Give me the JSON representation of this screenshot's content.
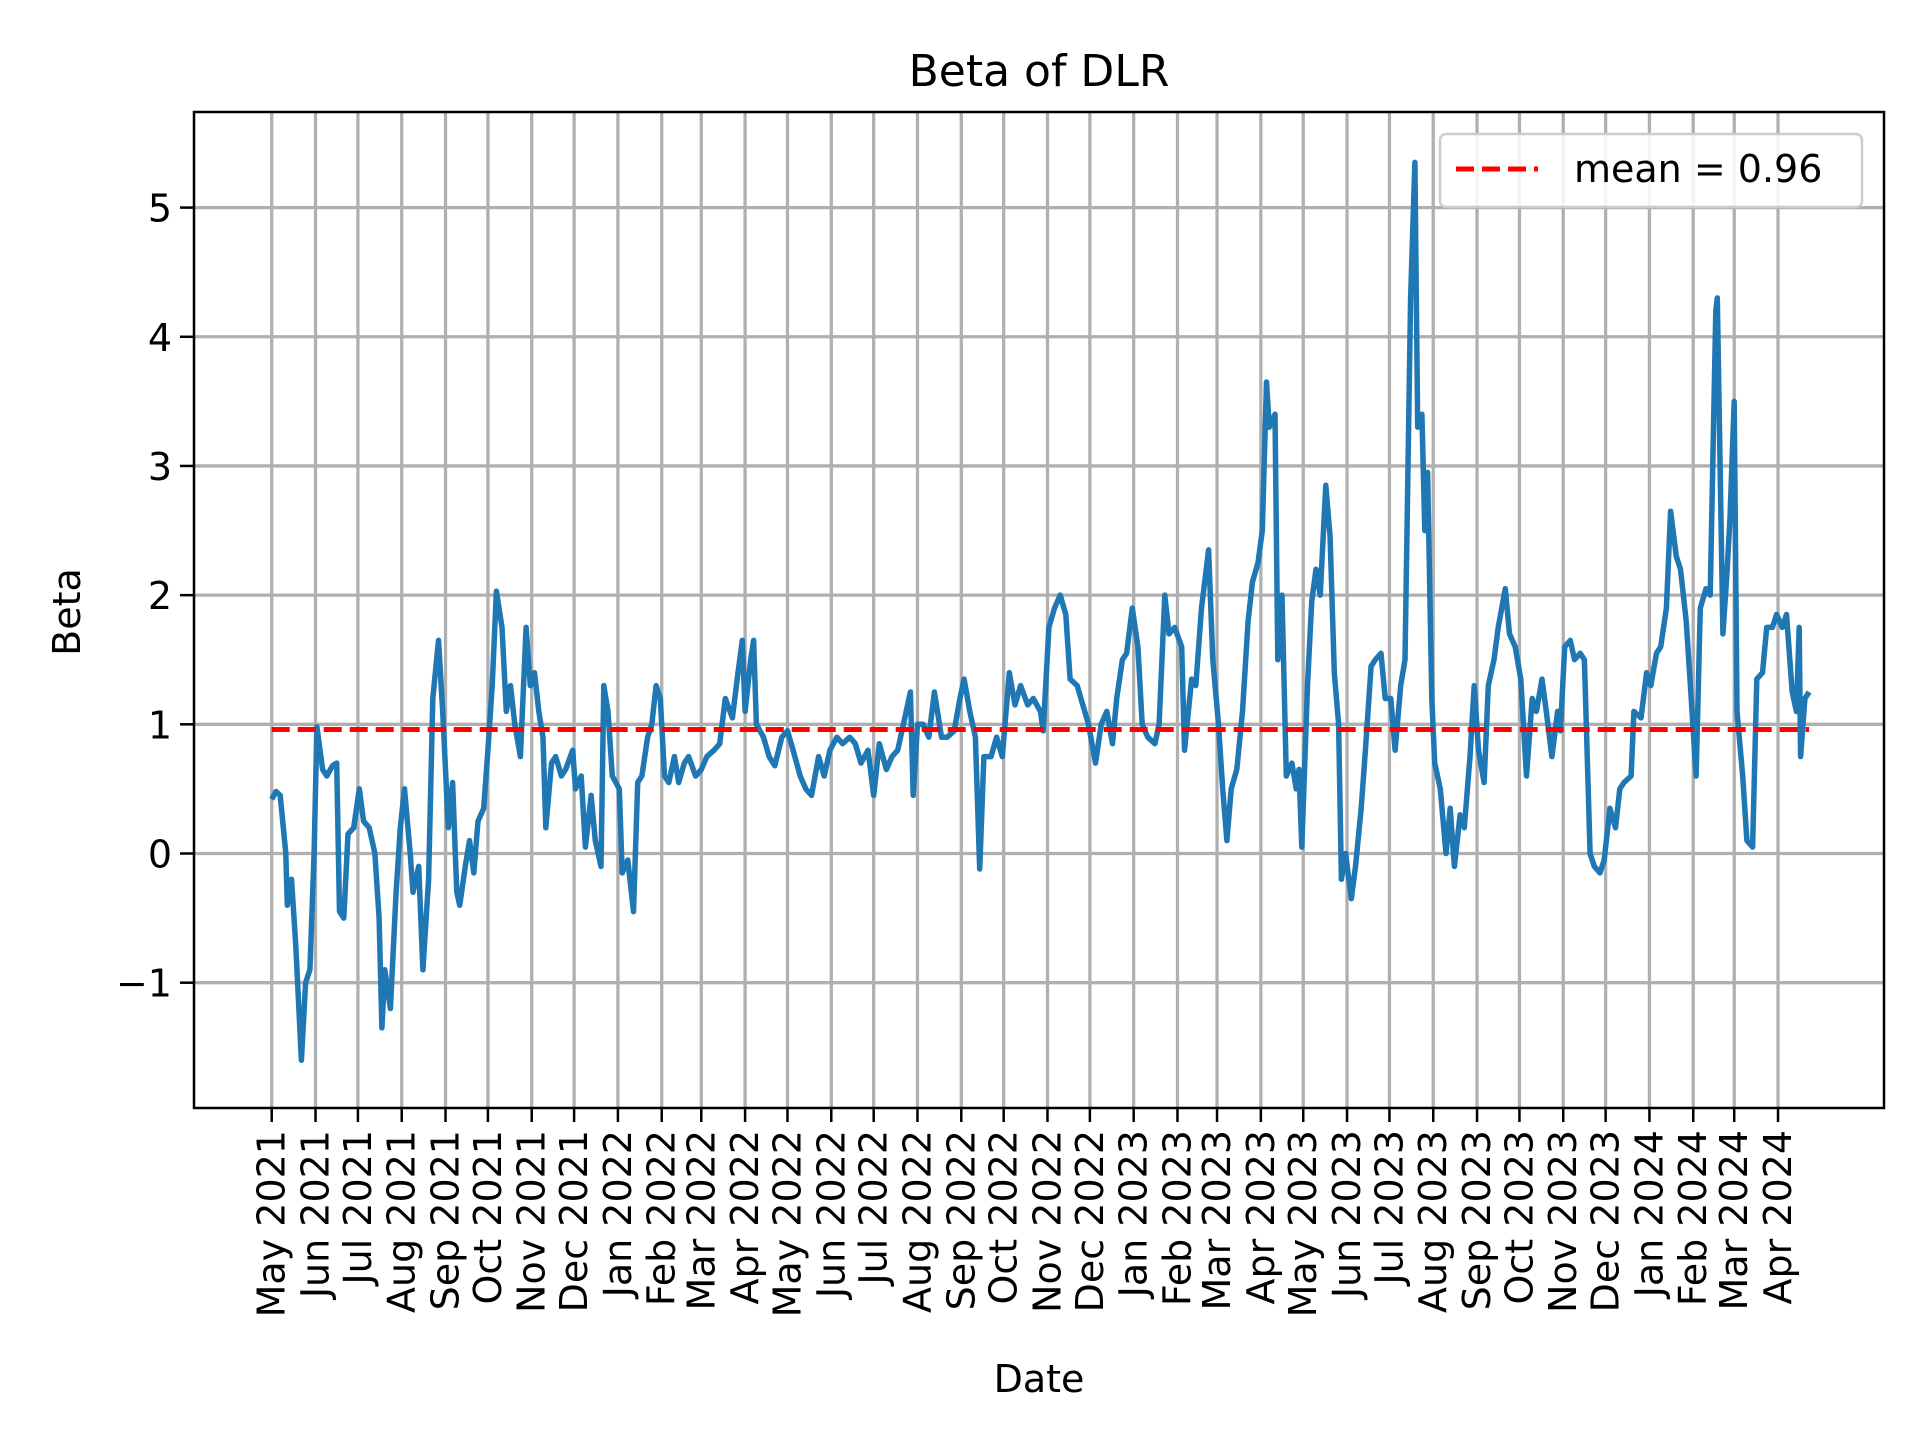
{
  "chart_data": {
    "type": "line",
    "title": "Beta of DLR",
    "xlabel": "Date",
    "ylabel": "Beta",
    "xlim": [
      "2021-03-07",
      "2024-06-15"
    ],
    "ylim": [
      -1.97,
      5.74
    ],
    "grid": true,
    "legend_placement": "top-right",
    "yticks": [
      -1,
      0,
      1,
      2,
      3,
      4,
      5
    ],
    "ytick_labels": [
      "−1",
      "0",
      "1",
      "2",
      "3",
      "4",
      "5"
    ],
    "xtick_labels": [
      "May 2021",
      "Jun 2021",
      "Jul 2021",
      "Aug 2021",
      "Sep 2021",
      "Oct 2021",
      "Nov 2021",
      "Dec 2021",
      "Jan 2022",
      "Feb 2022",
      "Mar 2022",
      "Apr 2022",
      "May 2022",
      "Jun 2022",
      "Jul 2022",
      "Aug 2022",
      "Sep 2022",
      "Oct 2022",
      "Nov 2022",
      "Dec 2022",
      "Jan 2023",
      "Feb 2023",
      "Mar 2023",
      "Apr 2023",
      "May 2023",
      "Jun 2023",
      "Jul 2023",
      "Aug 2023",
      "Sep 2023",
      "Oct 2023",
      "Nov 2023",
      "Dec 2023",
      "Jan 2024",
      "Feb 2024",
      "Mar 2024",
      "Apr 2024"
    ],
    "mean_line": {
      "value": 0.96,
      "label": "mean = 0.96",
      "color": "#ff0000",
      "style": "dashed"
    },
    "series": [
      {
        "color": "#1f77b4",
        "x": [
          "2021-05-01",
          "2021-05-04",
          "2021-05-07",
          "2021-05-11",
          "2021-05-12",
          "2021-05-15",
          "2021-05-18",
          "2021-05-22",
          "2021-05-25",
          "2021-05-28",
          "2021-05-31",
          "2021-06-02",
          "2021-06-06",
          "2021-06-09",
          "2021-06-13",
          "2021-06-16",
          "2021-06-18",
          "2021-06-21",
          "2021-06-24",
          "2021-06-28",
          "2021-07-02",
          "2021-07-05",
          "2021-07-09",
          "2021-07-13",
          "2021-07-16",
          "2021-07-18",
          "2021-07-20",
          "2021-07-24",
          "2021-07-28",
          "2021-07-31",
          "2021-08-03",
          "2021-08-07",
          "2021-08-09",
          "2021-08-13",
          "2021-08-16",
          "2021-08-20",
          "2021-08-23",
          "2021-08-27",
          "2021-08-30",
          "2021-09-03",
          "2021-09-06",
          "2021-09-09",
          "2021-09-11",
          "2021-09-15",
          "2021-09-18",
          "2021-09-21",
          "2021-09-24",
          "2021-09-28",
          "2021-10-01",
          "2021-10-04",
          "2021-10-07",
          "2021-10-11",
          "2021-10-14",
          "2021-10-17",
          "2021-10-20",
          "2021-10-24",
          "2021-10-28",
          "2021-10-31",
          "2021-11-03",
          "2021-11-06",
          "2021-11-09",
          "2021-11-11",
          "2021-11-15",
          "2021-11-18",
          "2021-11-22",
          "2021-11-25",
          "2021-11-30",
          "2021-12-02",
          "2021-12-06",
          "2021-12-09",
          "2021-12-13",
          "2021-12-16",
          "2021-12-20",
          "2021-12-22",
          "2021-12-25",
          "2021-12-28",
          "2022-01-02",
          "2022-01-04",
          "2022-01-08",
          "2022-01-12",
          "2022-01-15",
          "2022-01-18",
          "2022-01-22",
          "2022-01-25",
          "2022-01-28",
          "2022-01-31",
          "2022-02-03",
          "2022-02-06",
          "2022-02-10",
          "2022-02-13",
          "2022-02-17",
          "2022-02-20",
          "2022-02-25",
          "2022-03-01",
          "2022-03-05",
          "2022-03-10",
          "2022-03-14",
          "2022-03-18",
          "2022-03-23",
          "2022-03-27",
          "2022-03-30",
          "2022-04-01",
          "2022-04-05",
          "2022-04-07",
          "2022-04-09",
          "2022-04-14",
          "2022-04-18",
          "2022-04-22",
          "2022-04-27",
          "2022-05-01",
          "2022-05-05",
          "2022-05-10",
          "2022-05-14",
          "2022-05-18",
          "2022-05-23",
          "2022-05-27",
          "2022-05-31",
          "2022-06-05",
          "2022-06-09",
          "2022-06-14",
          "2022-06-18",
          "2022-06-22",
          "2022-06-27",
          "2022-07-01",
          "2022-07-05",
          "2022-07-10",
          "2022-07-14",
          "2022-07-18",
          "2022-07-23",
          "2022-07-27",
          "2022-07-29",
          "2022-08-01",
          "2022-08-05",
          "2022-08-09",
          "2022-08-13",
          "2022-08-18",
          "2022-08-22",
          "2022-08-27",
          "2022-08-31",
          "2022-09-03",
          "2022-09-07",
          "2022-09-11",
          "2022-09-14",
          "2022-09-17",
          "2022-09-22",
          "2022-09-26",
          "2022-09-30",
          "2022-10-05",
          "2022-10-09",
          "2022-10-13",
          "2022-10-18",
          "2022-10-22",
          "2022-10-27",
          "2022-10-29",
          "2022-11-02",
          "2022-11-06",
          "2022-11-10",
          "2022-11-14",
          "2022-11-17",
          "2022-11-22",
          "2022-11-26",
          "2022-11-30",
          "2022-12-05",
          "2022-12-09",
          "2022-12-13",
          "2022-12-17",
          "2022-12-20",
          "2022-12-24",
          "2022-12-27",
          "2022-12-31",
          "2023-01-04",
          "2023-01-07",
          "2023-01-11",
          "2023-01-16",
          "2023-01-19",
          "2023-01-23",
          "2023-01-26",
          "2023-01-30",
          "2023-02-04",
          "2023-02-06",
          "2023-02-11",
          "2023-02-14",
          "2023-02-18",
          "2023-02-23",
          "2023-02-26",
          "2023-03-02",
          "2023-03-05",
          "2023-03-08",
          "2023-03-11",
          "2023-03-15",
          "2023-03-19",
          "2023-03-23",
          "2023-03-26",
          "2023-03-30",
          "2023-04-02",
          "2023-04-05",
          "2023-04-07",
          "2023-04-11",
          "2023-04-13",
          "2023-04-16",
          "2023-04-19",
          "2023-04-23",
          "2023-04-26",
          "2023-04-28",
          "2023-04-30",
          "2023-05-04",
          "2023-05-07",
          "2023-05-10",
          "2023-05-13",
          "2023-05-17",
          "2023-05-20",
          "2023-05-23",
          "2023-05-26",
          "2023-05-28",
          "2023-05-31",
          "2023-06-04",
          "2023-06-07",
          "2023-06-11",
          "2023-06-14",
          "2023-06-18",
          "2023-06-21",
          "2023-06-25",
          "2023-06-28",
          "2023-07-02",
          "2023-07-05",
          "2023-07-09",
          "2023-07-12",
          "2023-07-16",
          "2023-07-19",
          "2023-07-21",
          "2023-07-24",
          "2023-07-26",
          "2023-07-28",
          "2023-07-31",
          "2023-08-02",
          "2023-08-06",
          "2023-08-10",
          "2023-08-13",
          "2023-08-16",
          "2023-08-20",
          "2023-08-23",
          "2023-08-27",
          "2023-08-30",
          "2023-09-02",
          "2023-09-06",
          "2023-09-09",
          "2023-09-13",
          "2023-09-16",
          "2023-09-21",
          "2023-09-24",
          "2023-09-28",
          "2023-10-02",
          "2023-10-06",
          "2023-10-10",
          "2023-10-13",
          "2023-10-17",
          "2023-10-20",
          "2023-10-24",
          "2023-10-28",
          "2023-10-30",
          "2023-11-02",
          "2023-11-06",
          "2023-11-09",
          "2023-11-13",
          "2023-11-16",
          "2023-11-20",
          "2023-11-23",
          "2023-11-27",
          "2023-11-30",
          "2023-12-04",
          "2023-12-08",
          "2023-12-11",
          "2023-12-14",
          "2023-12-19",
          "2023-12-21",
          "2023-12-26",
          "2023-12-30",
          "2024-01-02",
          "2024-01-06",
          "2024-01-09",
          "2024-01-13",
          "2024-01-16",
          "2024-01-20",
          "2024-01-23",
          "2024-01-27",
          "2024-01-30",
          "2024-02-03",
          "2024-02-06",
          "2024-02-10",
          "2024-02-13",
          "2024-02-17",
          "2024-02-18",
          "2024-02-22",
          "2024-02-25",
          "2024-02-27",
          "2024-03-01",
          "2024-03-03",
          "2024-03-07",
          "2024-03-10",
          "2024-03-14",
          "2024-03-17",
          "2024-03-21",
          "2024-03-24",
          "2024-03-28",
          "2024-03-31",
          "2024-04-04",
          "2024-04-07",
          "2024-04-11",
          "2024-04-14",
          "2024-04-16",
          "2024-04-17",
          "2024-04-20",
          "2024-04-23"
        ],
        "y": [
          0.42,
          0.48,
          0.45,
          0.0,
          -0.4,
          -0.2,
          -0.7,
          -1.6,
          -1.0,
          -0.9,
          0.0,
          0.98,
          0.65,
          0.6,
          0.68,
          0.7,
          -0.45,
          -0.5,
          0.15,
          0.2,
          0.5,
          0.25,
          0.2,
          0.0,
          -0.5,
          -1.35,
          -0.9,
          -1.2,
          -0.3,
          0.2,
          0.5,
          0.0,
          -0.3,
          -0.1,
          -0.9,
          -0.2,
          1.2,
          1.65,
          1.1,
          0.2,
          0.55,
          -0.3,
          -0.4,
          -0.1,
          0.1,
          -0.15,
          0.25,
          0.35,
          0.8,
          1.3,
          2.03,
          1.75,
          1.1,
          1.3,
          1.0,
          0.75,
          1.75,
          1.3,
          1.4,
          1.1,
          0.9,
          0.2,
          0.7,
          0.75,
          0.6,
          0.65,
          0.8,
          0.5,
          0.6,
          0.05,
          0.45,
          0.1,
          -0.1,
          1.3,
          1.1,
          0.6,
          0.5,
          -0.15,
          -0.05,
          -0.45,
          0.55,
          0.6,
          0.9,
          1.0,
          1.3,
          1.2,
          0.6,
          0.55,
          0.75,
          0.55,
          0.7,
          0.75,
          0.6,
          0.65,
          0.75,
          0.8,
          0.85,
          1.2,
          1.05,
          1.4,
          1.65,
          1.1,
          1.5,
          1.65,
          1.0,
          0.9,
          0.75,
          0.68,
          0.9,
          0.95,
          0.8,
          0.6,
          0.5,
          0.45,
          0.75,
          0.6,
          0.8,
          0.9,
          0.85,
          0.9,
          0.85,
          0.7,
          0.8,
          0.45,
          0.85,
          0.65,
          0.75,
          0.8,
          1.05,
          1.25,
          0.45,
          1.0,
          1.0,
          0.9,
          1.25,
          0.9,
          0.9,
          0.95,
          1.2,
          1.35,
          1.1,
          0.9,
          -0.12,
          0.75,
          0.75,
          0.9,
          0.75,
          1.4,
          1.15,
          1.3,
          1.15,
          1.2,
          1.1,
          0.95,
          1.75,
          1.9,
          2.0,
          1.85,
          1.35,
          1.3,
          1.15,
          1.0,
          0.7,
          1.0,
          1.1,
          0.85,
          1.2,
          1.5,
          1.55,
          1.9,
          1.6,
          1.0,
          0.9,
          0.85,
          1.0,
          2.0,
          1.7,
          1.75,
          1.6,
          0.8,
          1.35,
          1.3,
          1.9,
          2.35,
          1.5,
          1.0,
          0.5,
          0.1,
          0.5,
          0.65,
          1.1,
          1.8,
          2.1,
          2.25,
          2.5,
          3.65,
          3.3,
          3.4,
          1.5,
          2.0,
          0.6,
          0.7,
          0.5,
          0.65,
          0.05,
          1.3,
          1.95,
          2.2,
          2.0,
          2.85,
          2.45,
          1.4,
          1.0,
          -0.2,
          0.0,
          -0.35,
          -0.1,
          0.35,
          0.8,
          1.45,
          1.5,
          1.55,
          1.2,
          1.2,
          0.8,
          1.3,
          1.5,
          4.3,
          5.35,
          3.3,
          3.4,
          2.5,
          2.95,
          1.2,
          0.7,
          0.5,
          0.0,
          0.35,
          -0.1,
          0.3,
          0.2,
          0.75,
          1.3,
          0.8,
          0.55,
          1.3,
          1.5,
          1.75,
          2.05,
          1.7,
          1.6,
          1.35,
          0.6,
          1.2,
          1.1,
          1.35,
          1.1,
          0.75,
          1.1,
          0.95,
          1.6,
          1.65,
          1.5,
          1.55,
          1.5,
          0.0,
          -0.1,
          -0.15,
          -0.05,
          0.35,
          0.2,
          0.5,
          0.55,
          0.6,
          1.1,
          1.05,
          1.4,
          1.3,
          1.55,
          1.6,
          1.9,
          2.65,
          2.3,
          2.2,
          1.8,
          1.3,
          0.6,
          1.9,
          2.05,
          2.0,
          4.2,
          4.3,
          1.7,
          2.2,
          2.6,
          3.5,
          1.1,
          0.6,
          0.1,
          0.05,
          1.35,
          1.4,
          1.75,
          1.75,
          1.85,
          1.75,
          1.85,
          1.25,
          1.1,
          1.75,
          0.75,
          1.2,
          1.25
        ]
      }
    ]
  }
}
